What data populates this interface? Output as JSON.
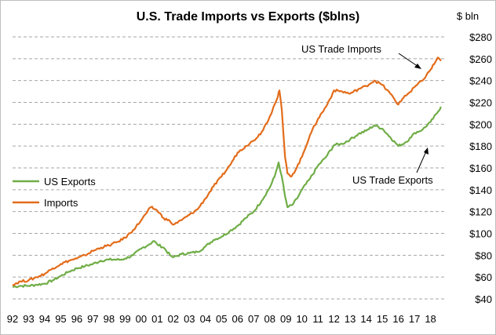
{
  "chart_data": {
    "type": "line",
    "title": "U.S. Trade Imports vs Exports ($blns)",
    "y_unit_label": "$ bln",
    "xlim": [
      1992,
      2018.9
    ],
    "ylim": [
      40,
      280
    ],
    "y_ticks": [
      40,
      60,
      80,
      100,
      120,
      140,
      160,
      180,
      200,
      220,
      240,
      260,
      280
    ],
    "y_tick_labels": [
      "$40",
      "$60",
      "$80",
      "$100",
      "$120",
      "$140",
      "$160",
      "$180",
      "$200",
      "$220",
      "$240",
      "$260",
      "$280"
    ],
    "x_ticks": [
      1992,
      1993,
      1994,
      1995,
      1996,
      1997,
      1998,
      1999,
      2000,
      2001,
      2002,
      2003,
      2004,
      2005,
      2006,
      2007,
      2008,
      2009,
      2010,
      2011,
      2012,
      2013,
      2014,
      2015,
      2016,
      2017,
      2018
    ],
    "x_tick_labels": [
      "92",
      "93",
      "94",
      "95",
      "96",
      "97",
      "98",
      "99",
      "00",
      "01",
      "02",
      "03",
      "04",
      "05",
      "06",
      "07",
      "08",
      "09",
      "10",
      "11",
      "12",
      "13",
      "14",
      "15",
      "16",
      "17",
      "18"
    ],
    "grid": "horizontal dashed",
    "legend_position": "left-middle",
    "series": [
      {
        "name": "US Exports",
        "legend_label": "US Exports",
        "color": "#70ad47",
        "points": [
          [
            1992.0,
            51
          ],
          [
            1992.5,
            52
          ],
          [
            1993.0,
            52
          ],
          [
            1993.5,
            53
          ],
          [
            1994.0,
            54
          ],
          [
            1994.5,
            57
          ],
          [
            1995.0,
            61
          ],
          [
            1995.5,
            65
          ],
          [
            1996.0,
            68
          ],
          [
            1996.5,
            70
          ],
          [
            1997.0,
            72
          ],
          [
            1997.5,
            75
          ],
          [
            1998.0,
            76
          ],
          [
            1998.4,
            76
          ],
          [
            1998.8,
            76
          ],
          [
            1999.0,
            77
          ],
          [
            1999.5,
            80
          ],
          [
            2000.0,
            86
          ],
          [
            2000.5,
            90
          ],
          [
            2000.8,
            93
          ],
          [
            2001.0,
            90
          ],
          [
            2001.4,
            87
          ],
          [
            2001.8,
            80
          ],
          [
            2002.0,
            78
          ],
          [
            2002.5,
            81
          ],
          [
            2003.0,
            82
          ],
          [
            2003.5,
            83
          ],
          [
            2004.0,
            88
          ],
          [
            2004.5,
            94
          ],
          [
            2005.0,
            97
          ],
          [
            2005.5,
            102
          ],
          [
            2006.0,
            107
          ],
          [
            2006.5,
            114
          ],
          [
            2007.0,
            120
          ],
          [
            2007.5,
            130
          ],
          [
            2008.0,
            142
          ],
          [
            2008.3,
            152
          ],
          [
            2008.55,
            165
          ],
          [
            2008.75,
            152
          ],
          [
            2008.95,
            134
          ],
          [
            2009.1,
            124
          ],
          [
            2009.4,
            126
          ],
          [
            2009.7,
            132
          ],
          [
            2010.0,
            140
          ],
          [
            2010.5,
            150
          ],
          [
            2011.0,
            162
          ],
          [
            2011.5,
            170
          ],
          [
            2012.0,
            181
          ],
          [
            2012.5,
            182
          ],
          [
            2013.0,
            186
          ],
          [
            2013.5,
            191
          ],
          [
            2014.0,
            194
          ],
          [
            2014.5,
            199
          ],
          [
            2015.0,
            196
          ],
          [
            2015.5,
            188
          ],
          [
            2016.0,
            180
          ],
          [
            2016.4,
            183
          ],
          [
            2016.8,
            188
          ],
          [
            2017.0,
            192
          ],
          [
            2017.5,
            195
          ],
          [
            2018.0,
            202
          ],
          [
            2018.4,
            210
          ],
          [
            2018.65,
            216
          ]
        ]
      },
      {
        "name": "Imports",
        "legend_label": "Imports",
        "color": "#e36c1a",
        "points": [
          [
            1992.0,
            53
          ],
          [
            1992.5,
            56
          ],
          [
            1993.0,
            57
          ],
          [
            1993.5,
            60
          ],
          [
            1994.0,
            63
          ],
          [
            1994.5,
            68
          ],
          [
            1995.0,
            72
          ],
          [
            1995.5,
            75
          ],
          [
            1996.0,
            77
          ],
          [
            1996.5,
            80
          ],
          [
            1997.0,
            84
          ],
          [
            1997.5,
            87
          ],
          [
            1998.0,
            89
          ],
          [
            1998.5,
            92
          ],
          [
            1999.0,
            96
          ],
          [
            1999.5,
            103
          ],
          [
            2000.0,
            112
          ],
          [
            2000.3,
            118
          ],
          [
            2000.6,
            124
          ],
          [
            2001.0,
            121
          ],
          [
            2001.4,
            114
          ],
          [
            2001.8,
            111
          ],
          [
            2002.0,
            108
          ],
          [
            2002.5,
            112
          ],
          [
            2003.0,
            117
          ],
          [
            2003.5,
            122
          ],
          [
            2004.0,
            132
          ],
          [
            2004.5,
            143
          ],
          [
            2005.0,
            152
          ],
          [
            2005.5,
            162
          ],
          [
            2006.0,
            174
          ],
          [
            2006.5,
            180
          ],
          [
            2007.0,
            185
          ],
          [
            2007.5,
            193
          ],
          [
            2008.0,
            207
          ],
          [
            2008.3,
            218
          ],
          [
            2008.5,
            225
          ],
          [
            2008.6,
            231
          ],
          [
            2008.75,
            213
          ],
          [
            2008.95,
            170
          ],
          [
            2009.1,
            155
          ],
          [
            2009.3,
            152
          ],
          [
            2009.6,
            158
          ],
          [
            2010.0,
            170
          ],
          [
            2010.5,
            190
          ],
          [
            2011.0,
            205
          ],
          [
            2011.5,
            216
          ],
          [
            2012.0,
            231
          ],
          [
            2012.5,
            230
          ],
          [
            2013.0,
            228
          ],
          [
            2013.5,
            232
          ],
          [
            2014.0,
            235
          ],
          [
            2014.5,
            240
          ],
          [
            2015.0,
            236
          ],
          [
            2015.5,
            228
          ],
          [
            2016.0,
            218
          ],
          [
            2016.4,
            226
          ],
          [
            2016.8,
            230
          ],
          [
            2017.0,
            234
          ],
          [
            2017.5,
            240
          ],
          [
            2018.0,
            250
          ],
          [
            2018.3,
            257
          ],
          [
            2018.45,
            261
          ],
          [
            2018.65,
            258
          ]
        ]
      }
    ],
    "annotations": [
      {
        "text": "US Trade Imports",
        "points_to_series": "Imports"
      },
      {
        "text": "US Trade Exports",
        "points_to_series": "US Exports"
      }
    ]
  }
}
